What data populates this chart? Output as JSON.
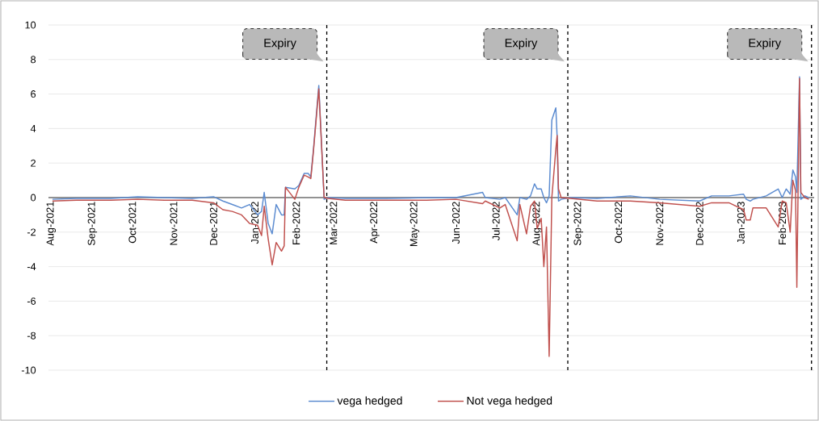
{
  "chart_data": {
    "type": "line",
    "x": [
      "2021-08-02",
      "2021-08-20",
      "2021-09-15",
      "2021-10-05",
      "2021-10-25",
      "2021-11-15",
      "2021-12-01",
      "2021-12-08",
      "2021-12-15",
      "2021-12-22",
      "2021-12-28",
      "2022-01-03",
      "2022-01-06",
      "2022-01-08",
      "2022-01-11",
      "2022-01-14",
      "2022-01-17",
      "2022-01-21",
      "2022-01-23",
      "2022-01-24",
      "2022-01-31",
      "2022-02-03",
      "2022-02-07",
      "2022-02-10",
      "2022-02-12",
      "2022-02-14",
      "2022-02-18",
      "2022-02-22",
      "2022-02-25",
      "2022-03-10",
      "2022-04-10",
      "2022-05-10",
      "2022-06-01",
      "2022-06-21",
      "2022-06-23",
      "2022-07-04",
      "2022-07-08",
      "2022-07-17",
      "2022-07-19",
      "2022-07-24",
      "2022-07-27",
      "2022-07-30",
      "2022-08-01",
      "2022-08-04",
      "2022-08-06",
      "2022-08-08",
      "2022-08-10",
      "2022-08-12",
      "2022-08-15",
      "2022-08-16",
      "2022-08-17",
      "2022-08-19",
      "2022-08-26",
      "2022-09-15",
      "2022-10-10",
      "2022-11-01",
      "2022-12-01",
      "2022-12-10",
      "2022-12-23",
      "2023-01-03",
      "2023-01-05",
      "2023-01-08",
      "2023-01-10",
      "2023-01-20",
      "2023-01-29",
      "2023-02-01",
      "2023-02-04",
      "2023-02-07",
      "2023-02-09",
      "2023-02-11",
      "2023-02-12",
      "2023-02-14",
      "2023-02-15",
      "2023-02-18",
      "2023-02-21"
    ],
    "series": [
      {
        "name": "vega hedged",
        "color": "#5b8bd0",
        "values": [
          -0.1,
          -0.05,
          -0.05,
          0.05,
          0.0,
          -0.05,
          0.05,
          -0.2,
          -0.4,
          -0.6,
          -0.4,
          -1.0,
          -0.8,
          0.3,
          -1.5,
          -2.1,
          -0.4,
          -1.0,
          -1.0,
          0.6,
          0.5,
          0.7,
          1.4,
          1.4,
          1.2,
          2.8,
          6.5,
          -0.1,
          0.0,
          -0.05,
          -0.05,
          0.0,
          0.0,
          0.3,
          0.0,
          -0.1,
          0.0,
          -1.0,
          0.0,
          -0.1,
          0.1,
          0.8,
          0.5,
          0.5,
          0.0,
          -0.3,
          0.1,
          4.5,
          5.2,
          3.5,
          -0.2,
          -0.1,
          0.0,
          -0.05,
          0.1,
          -0.1,
          -0.2,
          0.1,
          0.1,
          0.2,
          -0.1,
          -0.2,
          -0.1,
          0.1,
          0.5,
          0.0,
          0.5,
          0.2,
          1.6,
          1.2,
          0.3,
          7.0,
          -0.1,
          0.1,
          0.0
        ]
      },
      {
        "name": "Not vega hedged",
        "color": "#c0504d",
        "values": [
          -0.2,
          -0.15,
          -0.15,
          -0.1,
          -0.15,
          -0.15,
          -0.3,
          -0.7,
          -0.8,
          -1.0,
          -1.5,
          -1.6,
          -2.2,
          -0.5,
          -2.4,
          -3.9,
          -2.6,
          -3.1,
          -2.8,
          0.6,
          -0.1,
          0.6,
          1.3,
          1.2,
          1.1,
          2.7,
          6.3,
          0.0,
          -0.05,
          -0.15,
          -0.15,
          -0.15,
          -0.1,
          -0.35,
          -0.2,
          -0.6,
          -0.4,
          -2.5,
          -0.4,
          -2.1,
          -0.5,
          -0.2,
          -1.8,
          -1.2,
          -4.0,
          -1.7,
          -9.2,
          0.0,
          2.8,
          3.6,
          0.5,
          0.0,
          -0.05,
          -0.2,
          -0.2,
          -0.3,
          -0.5,
          -0.3,
          -0.3,
          -0.7,
          -1.3,
          -1.3,
          -0.6,
          -0.6,
          -1.7,
          -0.2,
          -0.3,
          -2.0,
          1.0,
          0.4,
          -5.2,
          6.9,
          0.3,
          0.0,
          -0.1
        ]
      }
    ],
    "xlim": [
      "2021-07-30",
      "2023-02-25"
    ],
    "xticks": [
      {
        "value": "2021-08-01",
        "label": "Aug-2021"
      },
      {
        "value": "2021-09-01",
        "label": "Sep-2021"
      },
      {
        "value": "2021-10-01",
        "label": "Oct-2021"
      },
      {
        "value": "2021-11-01",
        "label": "Nov-2021"
      },
      {
        "value": "2021-12-01",
        "label": "Dec-2021"
      },
      {
        "value": "2022-01-01",
        "label": "Jan-2022"
      },
      {
        "value": "2022-02-01",
        "label": "Feb-2022"
      },
      {
        "value": "2022-03-01",
        "label": "Mar-2022"
      },
      {
        "value": "2022-04-01",
        "label": "Apr-2022"
      },
      {
        "value": "2022-05-01",
        "label": "May-2022"
      },
      {
        "value": "2022-06-01",
        "label": "Jun-2022"
      },
      {
        "value": "2022-07-01",
        "label": "Jul-2022"
      },
      {
        "value": "2022-08-01",
        "label": "Aug-2022"
      },
      {
        "value": "2022-09-01",
        "label": "Sep-2022"
      },
      {
        "value": "2022-10-01",
        "label": "Oct-2022"
      },
      {
        "value": "2022-11-01",
        "label": "Nov-2022"
      },
      {
        "value": "2022-12-01",
        "label": "Dec-2022"
      },
      {
        "value": "2023-01-01",
        "label": "Jan-2023"
      },
      {
        "value": "2023-02-01",
        "label": "Feb-2023"
      }
    ],
    "ylim": [
      -10,
      10
    ],
    "yticks": [
      -10,
      -8,
      -6,
      -4,
      -2,
      0,
      2,
      4,
      6,
      8,
      10
    ],
    "grid": "y",
    "legend": "bottom",
    "line_style": "solid",
    "ref_lines": [
      {
        "axis": "x",
        "value": "2022-02-24",
        "label": "Expiry",
        "color": "#000000",
        "line_style": "dashed"
      },
      {
        "axis": "x",
        "value": "2022-08-24",
        "label": "Expiry",
        "color": "#000000",
        "line_style": "dashed"
      },
      {
        "axis": "x",
        "value": "2023-02-23",
        "label": "Expiry",
        "color": "#000000",
        "line_style": "dashed"
      }
    ]
  }
}
